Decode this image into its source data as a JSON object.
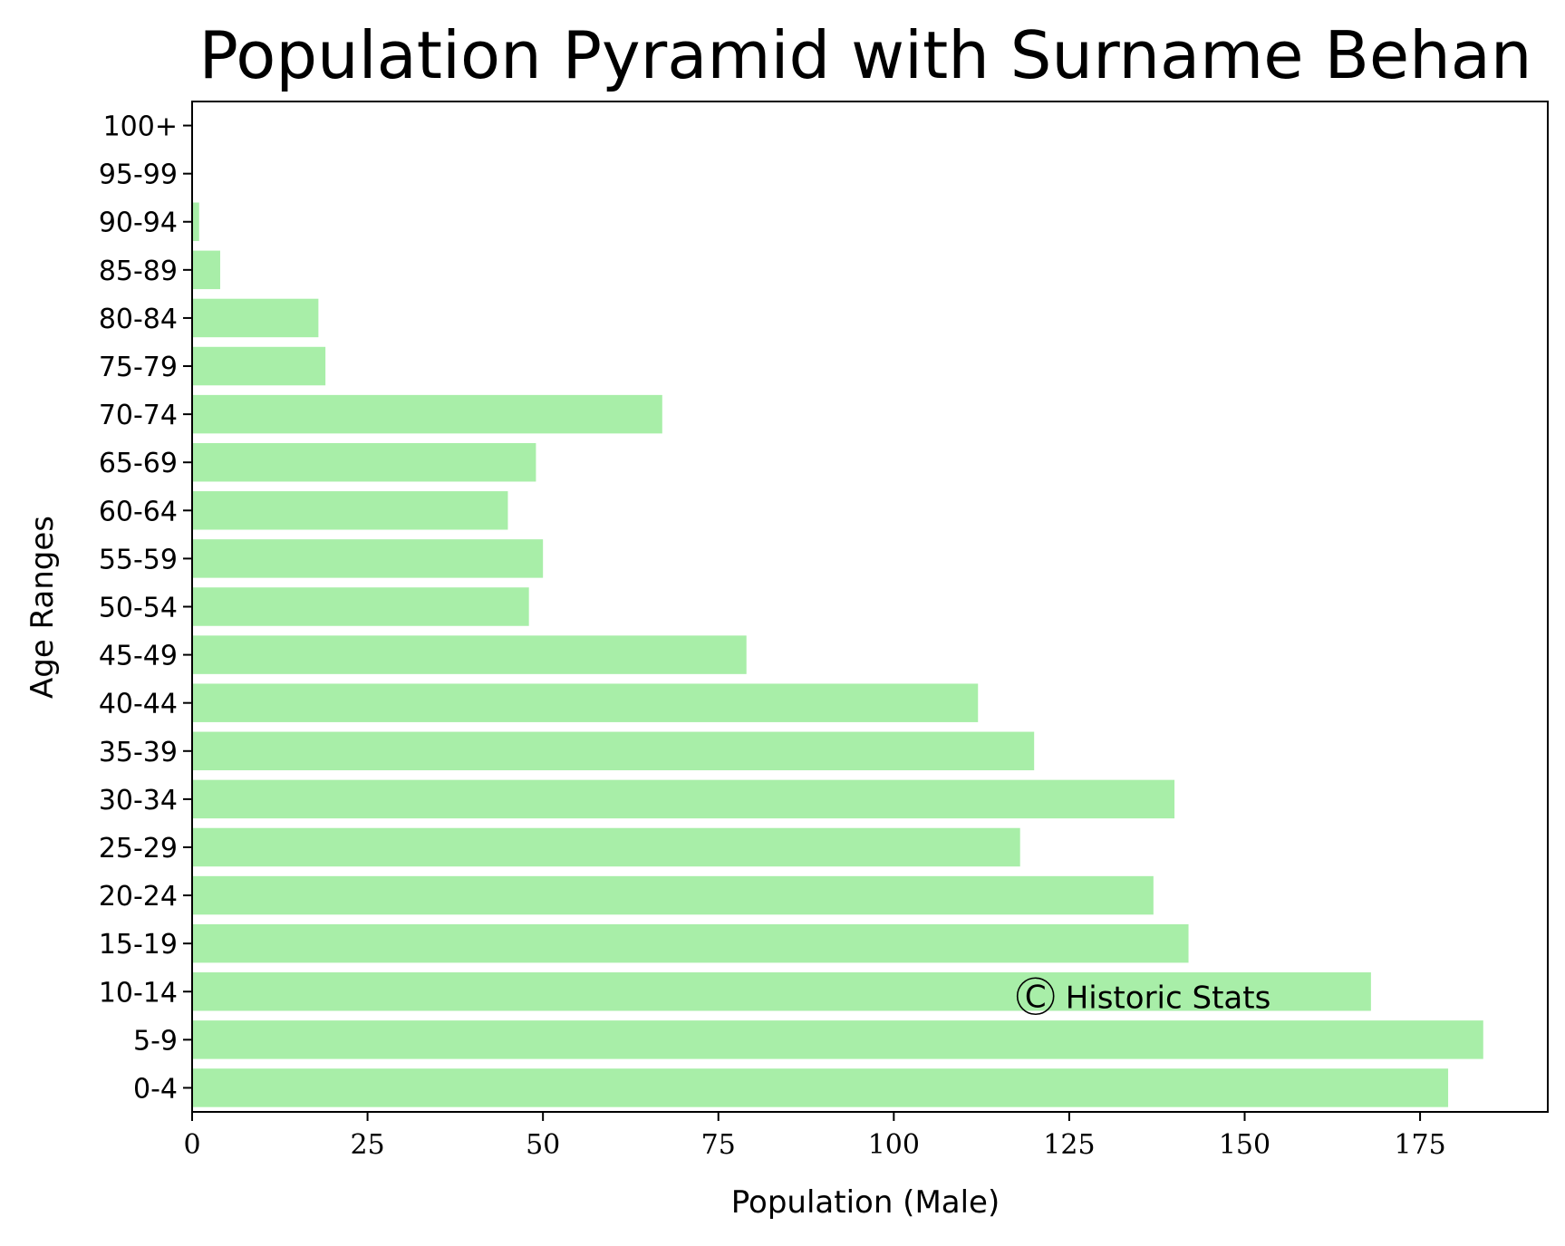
{
  "chart_data": {
    "type": "bar",
    "orientation": "horizontal",
    "title": "Population Pyramid with Surname Behan",
    "xlabel": "Population (Male)",
    "ylabel": "Age Ranges",
    "categories": [
      "0-4",
      "5-9",
      "10-14",
      "15-19",
      "20-24",
      "25-29",
      "30-34",
      "35-39",
      "40-44",
      "45-49",
      "50-54",
      "55-59",
      "60-64",
      "65-69",
      "70-74",
      "75-79",
      "80-84",
      "85-89",
      "90-94",
      "95-99",
      "100+"
    ],
    "values": [
      179,
      184,
      168,
      142,
      137,
      118,
      140,
      120,
      112,
      79,
      48,
      50,
      45,
      49,
      67,
      19,
      18,
      4,
      1,
      0,
      0
    ],
    "xlim": [
      0,
      193.2
    ],
    "xticks": [
      0,
      25,
      50,
      75,
      100,
      125,
      150,
      175
    ],
    "bar_color": "#a8eea8",
    "grid": false,
    "annotation": {
      "symbol": "C",
      "text": "Historic Stats",
      "x": 118,
      "y_category": "10-14"
    }
  }
}
